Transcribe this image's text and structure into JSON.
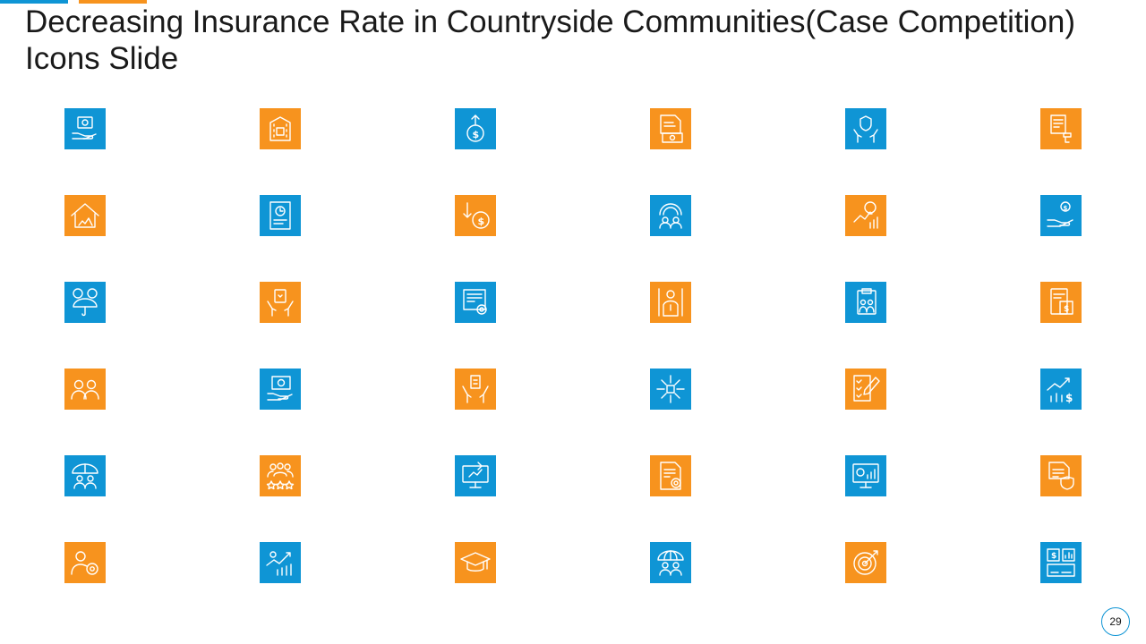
{
  "slide": {
    "title": "Decreasing Insurance Rate in Countryside Communities(Case Competition) Icons Slide",
    "page_number": "29"
  },
  "colors": {
    "blue": "#0f95d5",
    "orange": "#f7931e",
    "icon_stroke": "#ffffff",
    "title_text": "#1a1a1a"
  },
  "icon_rows": [
    [
      "money-in-hand-icon",
      "bank-building-icon",
      "money-bag-growth-icon",
      "invoice-cash-icon",
      "protection-hands-icon",
      "document-stamp-icon"
    ],
    [
      "house-insurance-icon",
      "report-clock-icon",
      "dollar-decrease-icon",
      "shared-insurance-icon",
      "growth-idea-icon",
      "hand-coin-icon"
    ],
    [
      "umbrella-coins-icon",
      "hands-card-icon",
      "certificate-settings-icon",
      "life-insurance-icon",
      "clipboard-family-icon",
      "payment-card-icon"
    ],
    [
      "two-users-icon",
      "cash-presentation-icon",
      "hands-box-icon",
      "network-hub-icon",
      "checklist-pen-icon",
      "investment-chart-icon"
    ],
    [
      "family-umbrella-icon",
      "customer-rating-icon",
      "online-monitor-icon",
      "document-settings-icon",
      "analytics-monitor-icon",
      "secure-document-icon"
    ],
    [
      "user-settings-icon",
      "revenue-growth-icon",
      "graduation-cap-icon",
      "global-insurance-icon",
      "target-icon",
      "finance-board-icon"
    ]
  ]
}
